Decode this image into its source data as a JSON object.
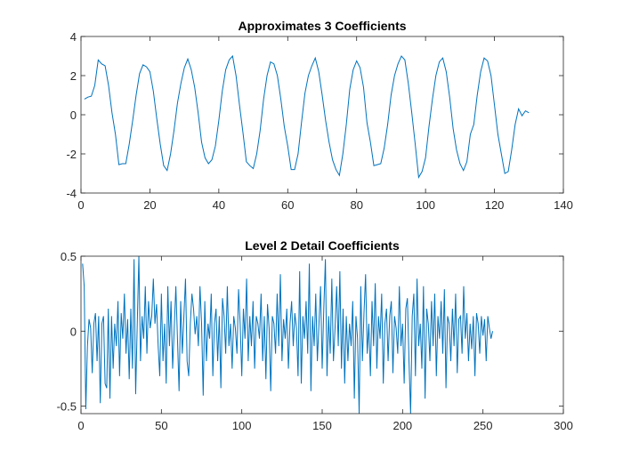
{
  "chart_data": [
    {
      "type": "line",
      "title": "Approximates 3 Coefficients",
      "xlim": [
        0,
        140
      ],
      "xticks": [
        0,
        20,
        40,
        60,
        80,
        100,
        120,
        140
      ],
      "ylim": [
        -4,
        4
      ],
      "yticks": [
        -4,
        -2,
        0,
        2,
        4
      ],
      "series": [
        {
          "color": "#0072bd",
          "x": [
            1,
            2,
            3,
            4,
            5,
            6,
            7,
            8,
            9,
            10,
            11,
            12,
            13,
            14,
            15,
            16,
            17,
            18,
            19,
            20,
            21,
            22,
            23,
            24,
            25,
            26,
            27,
            28,
            29,
            30,
            31,
            32,
            33,
            34,
            35,
            36,
            37,
            38,
            39,
            40,
            41,
            42,
            43,
            44,
            45,
            46,
            47,
            48,
            49,
            50,
            51,
            52,
            53,
            54,
            55,
            56,
            57,
            58,
            59,
            60,
            61,
            62,
            63,
            64,
            65,
            66,
            67,
            68,
            69,
            70,
            71,
            72,
            73,
            74,
            75,
            76,
            77,
            78,
            79,
            80,
            81,
            82,
            83,
            84,
            85,
            86,
            87,
            88,
            89,
            90,
            91,
            92,
            93,
            94,
            95,
            96,
            97,
            98,
            99,
            100,
            101,
            102,
            103,
            104,
            105,
            106,
            107,
            108,
            109,
            110,
            111,
            112,
            113,
            114,
            115,
            116,
            117,
            118,
            119,
            120,
            121,
            122,
            123,
            124,
            125,
            126,
            127,
            128,
            129,
            130
          ],
          "values": [
            0.8,
            0.9,
            0.95,
            1.5,
            2.8,
            2.6,
            2.5,
            1.5,
            0.1,
            -1.0,
            -2.55,
            -2.5,
            -2.5,
            -1.5,
            -0.3,
            1.0,
            2.1,
            2.55,
            2.45,
            2.2,
            1.2,
            -0.2,
            -1.5,
            -2.6,
            -2.85,
            -2.0,
            -0.8,
            0.6,
            1.6,
            2.4,
            2.85,
            2.3,
            1.4,
            0.1,
            -1.4,
            -2.2,
            -2.5,
            -2.3,
            -1.6,
            -0.3,
            1.2,
            2.3,
            2.8,
            3.0,
            2.0,
            0.5,
            -0.9,
            -2.4,
            -2.6,
            -2.75,
            -2.0,
            -0.8,
            0.8,
            2.0,
            2.7,
            2.6,
            2.0,
            0.8,
            -0.6,
            -1.6,
            -2.8,
            -2.8,
            -2.0,
            -0.4,
            1.1,
            2.0,
            2.5,
            2.9,
            2.2,
            1.0,
            -0.3,
            -1.4,
            -2.3,
            -2.8,
            -3.1,
            -2.0,
            -0.5,
            1.3,
            2.3,
            2.75,
            2.4,
            1.4,
            -0.4,
            -1.4,
            -2.6,
            -2.55,
            -2.5,
            -1.7,
            -0.5,
            1.0,
            2.0,
            2.6,
            3.0,
            2.8,
            1.6,
            0.1,
            -1.5,
            -3.2,
            -2.9,
            -2.2,
            -0.6,
            0.8,
            2.0,
            2.7,
            2.9,
            2.2,
            0.9,
            -0.7,
            -1.8,
            -2.5,
            -2.85,
            -2.4,
            -1.0,
            -0.5,
            1.0,
            2.2,
            2.9,
            2.75,
            2.0,
            0.5,
            -1.0,
            -2.0,
            -3.0,
            -2.9,
            -1.8,
            -0.5,
            0.3,
            -0.05,
            0.2,
            0.1
          ]
        }
      ]
    },
    {
      "type": "line",
      "title": "Level 2 Detail Coefficients",
      "xlim": [
        0,
        300
      ],
      "xticks": [
        0,
        50,
        100,
        150,
        200,
        250,
        300
      ],
      "ylim": [
        -0.55,
        0.5
      ],
      "yticks": [
        -0.5,
        0,
        0.5
      ],
      "series": [
        {
          "color": "#0072bd",
          "x": [
            1,
            2,
            3,
            4,
            5,
            6,
            7,
            8,
            9,
            10,
            11,
            12,
            13,
            14,
            15,
            16,
            17,
            18,
            19,
            20,
            21,
            22,
            23,
            24,
            25,
            26,
            27,
            28,
            29,
            30,
            31,
            32,
            33,
            34,
            35,
            36,
            37,
            38,
            39,
            40,
            41,
            42,
            43,
            44,
            45,
            46,
            47,
            48,
            49,
            50,
            51,
            52,
            53,
            54,
            55,
            56,
            57,
            58,
            59,
            60,
            61,
            62,
            63,
            64,
            65,
            66,
            67,
            68,
            69,
            70,
            71,
            72,
            73,
            74,
            75,
            76,
            77,
            78,
            79,
            80,
            81,
            82,
            83,
            84,
            85,
            86,
            87,
            88,
            89,
            90,
            91,
            92,
            93,
            94,
            95,
            96,
            97,
            98,
            99,
            100,
            101,
            102,
            103,
            104,
            105,
            106,
            107,
            108,
            109,
            110,
            111,
            112,
            113,
            114,
            115,
            116,
            117,
            118,
            119,
            120,
            121,
            122,
            123,
            124,
            125,
            126,
            127,
            128,
            129,
            130,
            131,
            132,
            133,
            134,
            135,
            136,
            137,
            138,
            139,
            140,
            141,
            142,
            143,
            144,
            145,
            146,
            147,
            148,
            149,
            150,
            151,
            152,
            153,
            154,
            155,
            156,
            157,
            158,
            159,
            160,
            161,
            162,
            163,
            164,
            165,
            166,
            167,
            168,
            169,
            170,
            171,
            172,
            173,
            174,
            175,
            176,
            177,
            178,
            179,
            180,
            181,
            182,
            183,
            184,
            185,
            186,
            187,
            188,
            189,
            190,
            191,
            192,
            193,
            194,
            195,
            196,
            197,
            198,
            199,
            200,
            201,
            202,
            203,
            204,
            205,
            206,
            207,
            208,
            209,
            210,
            211,
            212,
            213,
            214,
            215,
            216,
            217,
            218,
            219,
            220,
            221,
            222,
            223,
            224,
            225,
            226,
            227,
            228,
            229,
            230,
            231,
            232,
            233,
            234,
            235,
            236,
            237,
            238,
            239,
            240,
            241,
            242,
            243,
            244,
            245,
            246,
            247,
            248,
            249,
            250,
            251,
            252,
            253,
            254,
            255,
            256
          ],
          "values": [
            0.45,
            0.3,
            -0.52,
            -0.1,
            0.08,
            0.02,
            -0.28,
            0.05,
            0.12,
            -0.2,
            0.1,
            -0.48,
            0.05,
            0.1,
            -0.35,
            -0.38,
            0.15,
            -0.45,
            0.1,
            -0.25,
            0.05,
            -0.1,
            0.2,
            -0.3,
            0.12,
            -0.05,
            0.25,
            -0.15,
            0.08,
            -0.32,
            0.15,
            -0.25,
            0.48,
            -0.42,
            0.05,
            0.5,
            -0.2,
            0.1,
            -0.05,
            0.3,
            -0.15,
            0.2,
            0.02,
            0.1,
            0.35,
            0.05,
            0.18,
            -0.1,
            -0.3,
            0.25,
            -0.2,
            0.05,
            -0.35,
            0.3,
            -0.1,
            0.2,
            -0.25,
            0.02,
            0.3,
            -0.05,
            -0.4,
            0.2,
            -0.15,
            0.1,
            0.35,
            -0.2,
            -0.3,
            0.05,
            0.25,
            0.15,
            -0.02,
            0.1,
            -0.1,
            0.3,
            0.05,
            -0.43,
            0.2,
            -0.2,
            0.05,
            -0.05,
            0.25,
            -0.3,
            0.05,
            0.15,
            -0.2,
            0.1,
            -0.38,
            0.22,
            0.1,
            -0.15,
            0.3,
            -0.1,
            0.05,
            -0.25,
            0.1,
            0.02,
            -0.15,
            0.28,
            0.05,
            -0.3,
            0.15,
            -0.05,
            0.35,
            -0.2,
            0.1,
            -0.1,
            0.2,
            -0.25,
            0.1,
            0.05,
            -0.05,
            0.25,
            -0.2,
            0.1,
            -0.32,
            0.18,
            0.02,
            -0.4,
            0.1,
            0.05,
            -0.15,
            0.25,
            -0.1,
            0.38,
            -0.2,
            0.08,
            -0.05,
            0.15,
            -0.25,
            0.05,
            0.2,
            -0.1,
            0.12,
            0.02,
            -0.3,
            0.4,
            -0.35,
            0.1,
            -0.05,
            0.2,
            -0.15,
            0.45,
            -0.4,
            0.1,
            -0.1,
            0.25,
            -0.2,
            0.05,
            0.3,
            -0.25,
            0.15,
            0.48,
            -0.3,
            0.1,
            -0.15,
            0.35,
            -0.2,
            0.02,
            0.3,
            -0.1,
            0.4,
            -0.25,
            0.15,
            -0.35,
            0.1,
            -0.2,
            0.05,
            -0.1,
            0.2,
            -0.45,
            0.1,
            -0.05,
            -0.55,
            0.3,
            -0.2,
            0.12,
            0.38,
            -0.15,
            0.05,
            -0.3,
            0.2,
            -0.1,
            0.32,
            -0.25,
            0.1,
            -0.05,
            0.25,
            -0.35,
            0.05,
            0.15,
            -0.2,
            0.1,
            0.2,
            -0.28,
            0.1,
            0.02,
            -0.15,
            0.3,
            -0.1,
            0.05,
            -0.35,
            0.15,
            0.22,
            -0.2,
            -0.55,
            0.1,
            0.25,
            -0.3,
            0.35,
            -0.1,
            0.05,
            -0.25,
            0.3,
            -0.45,
            0.15,
            0.05,
            -0.2,
            0.2,
            -0.1,
            0.25,
            -0.3,
            0.1,
            -0.05,
            0.2,
            -0.15,
            0.28,
            -0.38,
            0.1,
            0.05,
            -0.2,
            0.15,
            -0.1,
            0.25,
            -0.28,
            0.08,
            0.1,
            -0.15,
            0.3,
            -0.05,
            0.12,
            -0.2,
            0.05,
            -0.12,
            0.1,
            -0.3,
            0.12,
            0.05,
            -0.15,
            0.1,
            -0.03,
            0.08,
            -0.2,
            0.1,
            0.02,
            -0.05,
            0.0
          ]
        }
      ]
    }
  ]
}
